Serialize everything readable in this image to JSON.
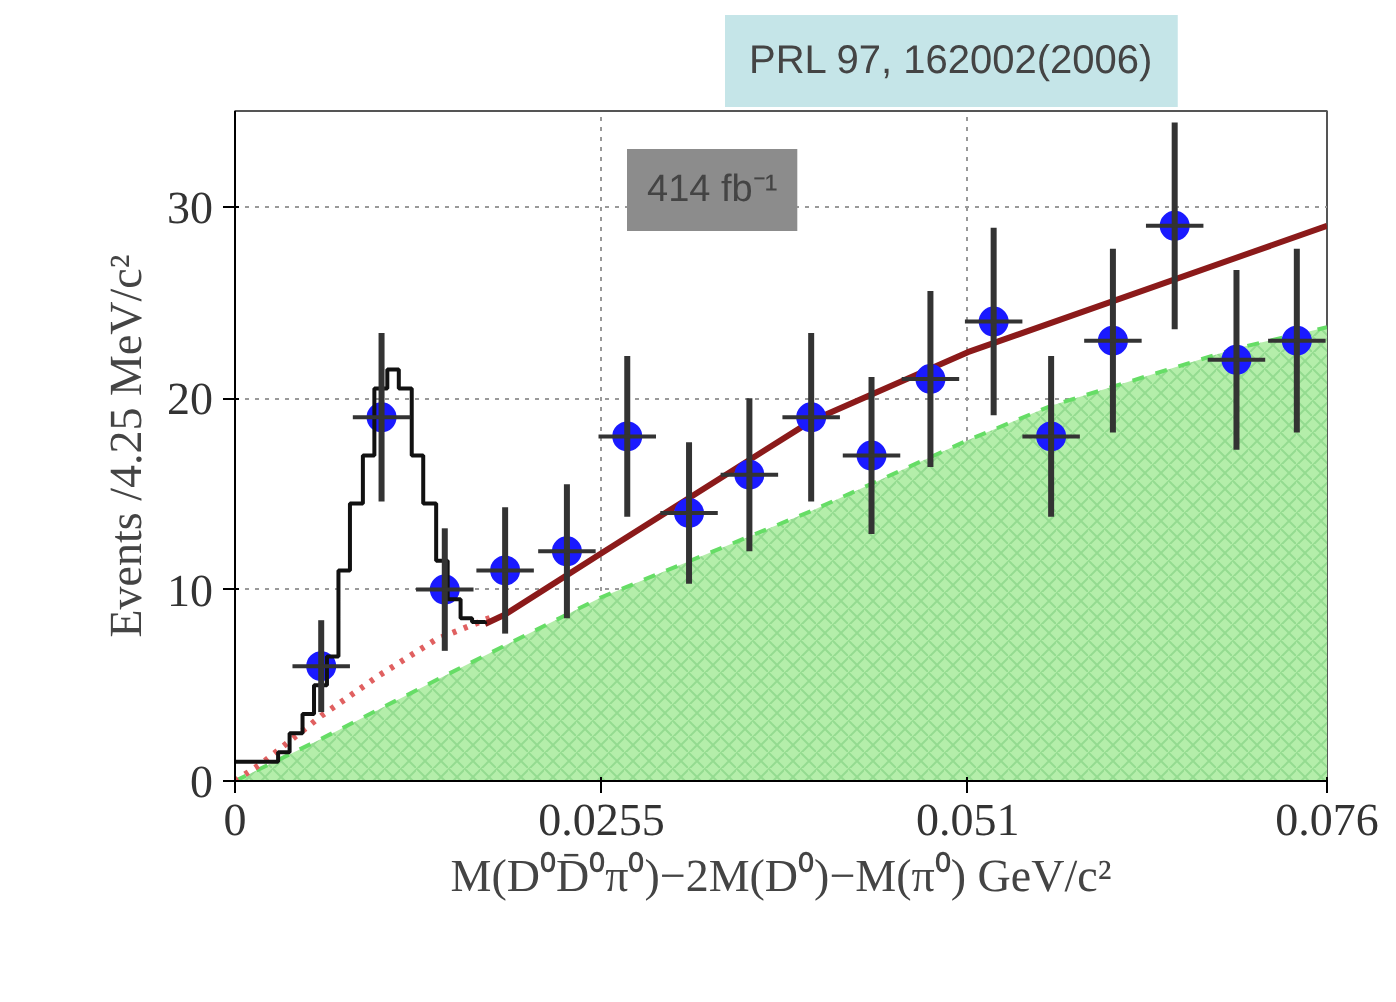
{
  "chart_data": {
    "type": "scatter",
    "xlabel": "M(D⁰D̄⁰π⁰)−2M(D⁰)−M(π⁰) GeV/c²",
    "ylabel": "Events /4.25 MeV/c²",
    "annotations": [
      "PRL 97, 162002(2006)",
      "414 fb⁻¹"
    ],
    "xlim": [
      0,
      0.076
    ],
    "ylim": [
      0,
      35
    ],
    "xticks": [
      0,
      0.0255,
      0.051,
      0.076
    ],
    "yticks": [
      0,
      10,
      20,
      30
    ],
    "grid": true,
    "series": [
      {
        "type": "area",
        "color": "#b4eeaa",
        "x": [
          0,
          0.006,
          0.0146,
          0.0255,
          0.0401,
          0.051,
          0.0568,
          0.0697,
          0.076
        ],
        "values": [
          0,
          2.2,
          5.5,
          9.6,
          14.1,
          17.8,
          19.6,
          22.6,
          23.7
        ]
      },
      {
        "type": "step",
        "color": "#111111",
        "x": [
          0,
          0.002,
          0.003,
          0.0038,
          0.0047,
          0.0055,
          0.0064,
          0.0072,
          0.008,
          0.0089,
          0.0097,
          0.0106,
          0.0114,
          0.0123,
          0.0131,
          0.014,
          0.0148,
          0.0157,
          0.0165,
          0.0174
        ],
        "values": [
          1,
          1,
          1.5,
          2.5,
          3.5,
          5,
          6.5,
          11,
          14.5,
          17,
          20.5,
          21.5,
          20.5,
          17,
          14.5,
          11.5,
          9.5,
          8.5,
          8.3,
          8.2
        ]
      },
      {
        "type": "line",
        "color": "#e06060",
        "line_style": "dotted",
        "x": [
          0,
          0.002,
          0.006,
          0.01,
          0.014,
          0.018
        ],
        "values": [
          0,
          1,
          3.4,
          5.5,
          7.4,
          8.6
        ]
      },
      {
        "type": "line",
        "color": "#8b1a1a",
        "line_style": "solid",
        "x": [
          0.0174,
          0.0188,
          0.0255,
          0.0401,
          0.051,
          0.076
        ],
        "values": [
          8.2,
          8.7,
          11.9,
          18.8,
          22.4,
          29
        ]
      },
      {
        "color": "#1a1aff",
        "marker": "circle",
        "x": [
          0.006,
          0.0102,
          0.0146,
          0.0188,
          0.0231,
          0.0273,
          0.0316,
          0.0358,
          0.0401,
          0.0443,
          0.0484,
          0.0528,
          0.0568,
          0.0611,
          0.0654,
          0.0697,
          0.0739
        ],
        "values": [
          6,
          19,
          10,
          11,
          12,
          18,
          14,
          16,
          19,
          17,
          21,
          24,
          18,
          23,
          29,
          22,
          23
        ],
        "errors": [
          2.4,
          4.4,
          3.2,
          3.3,
          3.5,
          4.2,
          3.7,
          4.0,
          4.4,
          4.1,
          4.6,
          4.9,
          4.2,
          4.8,
          5.4,
          4.7,
          4.8
        ],
        "xerrors": [
          0.002,
          0.002,
          0.002,
          0.002,
          0.002,
          0.002,
          0.002,
          0.002,
          0.002,
          0.002,
          0.002,
          0.002,
          0.002,
          0.002,
          0.002,
          0.002,
          0.002
        ]
      }
    ]
  }
}
